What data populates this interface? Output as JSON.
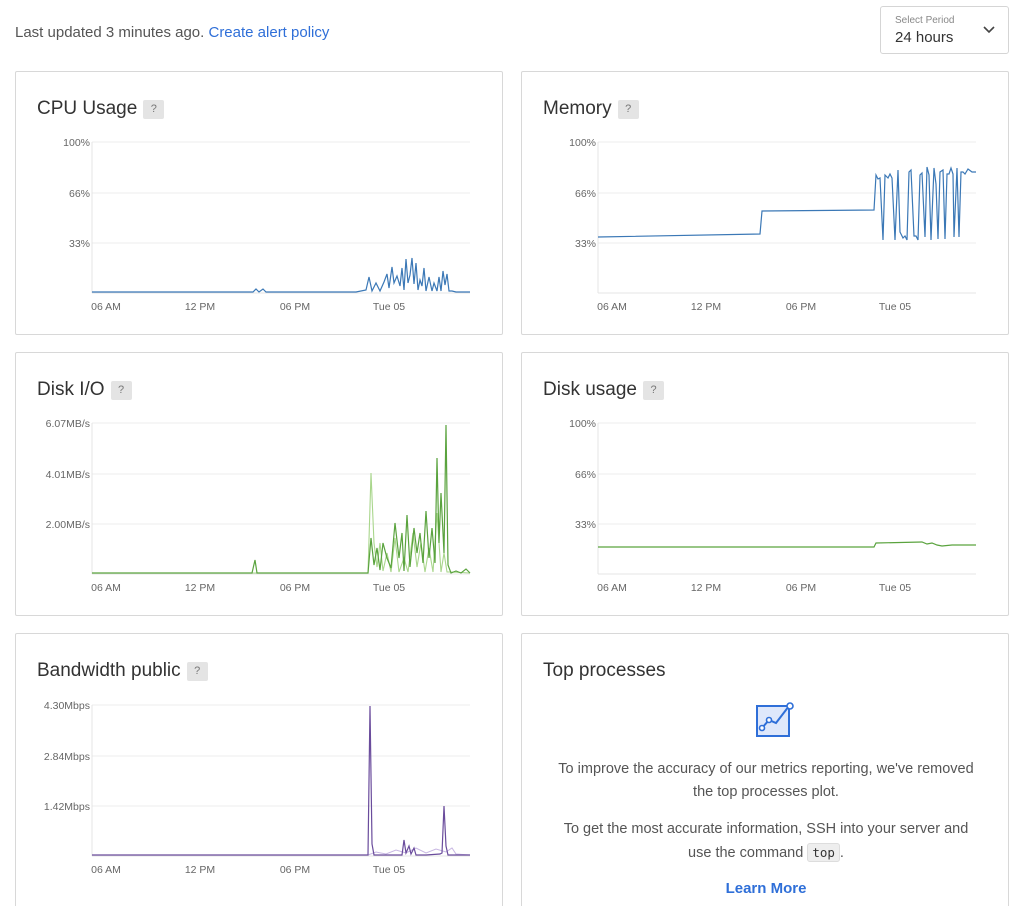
{
  "header": {
    "last_updated": "Last updated 3 minutes ago.",
    "alert_link": "Create alert policy",
    "period_caption": "Select Period",
    "period_value": "24 hours",
    "chevron_icon": "chevron-down-icon"
  },
  "charts": {
    "cpu": {
      "title": "CPU Usage",
      "help": "?",
      "yticks": [
        "100%",
        "66%",
        "33%"
      ],
      "xticks": [
        "06 AM",
        "12 PM",
        "06 PM",
        "Tue 05"
      ],
      "color": "#3b78b6"
    },
    "memory": {
      "title": "Memory",
      "help": "?",
      "yticks": [
        "100%",
        "66%",
        "33%"
      ],
      "xticks": [
        "06 AM",
        "12 PM",
        "06 PM",
        "Tue 05"
      ],
      "color": "#3b78b6"
    },
    "disk_io": {
      "title": "Disk I/O",
      "help": "?",
      "yticks": [
        "6.07MB/s",
        "4.01MB/s",
        "2.00MB/s"
      ],
      "xticks": [
        "06 AM",
        "12 PM",
        "06 PM",
        "Tue 05"
      ],
      "color": "#5aa33e",
      "color2": "#a9d68c"
    },
    "disk_usage": {
      "title": "Disk usage",
      "help": "?",
      "yticks": [
        "100%",
        "66%",
        "33%"
      ],
      "xticks": [
        "06 AM",
        "12 PM",
        "06 PM",
        "Tue 05"
      ],
      "color": "#5aa33e"
    },
    "bandwidth": {
      "title": "Bandwidth public",
      "help": "?",
      "yticks": [
        "4.30Mbps",
        "2.84Mbps",
        "1.42Mbps"
      ],
      "xticks": [
        "06 AM",
        "12 PM",
        "06 PM",
        "Tue 05"
      ],
      "color": "#6a4c9c",
      "color2": "#c7b6e2"
    }
  },
  "top_processes": {
    "title": "Top processes",
    "icon": "chart-line-icon",
    "para1": "To improve the accuracy of our metrics reporting, we've removed the top processes plot.",
    "para2_before": "To get the most accurate information, SSH into your server and use the command",
    "command": "top",
    "para2_after": ".",
    "learn_more": "Learn More"
  },
  "chart_data": [
    {
      "type": "line",
      "title": "CPU Usage",
      "ylim": [
        0,
        100
      ],
      "yticks": [
        "100%",
        "66%",
        "33%"
      ],
      "xticks": [
        "06 AM",
        "12 PM",
        "06 PM",
        "Tue 05"
      ],
      "x": [
        0,
        10,
        20,
        30,
        40,
        41,
        42,
        43,
        44,
        45,
        46,
        47,
        48,
        49,
        50,
        51,
        52,
        53,
        54,
        55,
        56,
        57,
        58,
        59,
        60,
        61,
        62,
        63,
        64,
        65,
        66,
        67,
        68,
        69,
        70,
        71,
        72,
        73,
        74,
        75,
        76,
        77,
        78,
        79,
        80,
        81,
        82,
        83,
        84,
        85,
        86,
        87,
        88,
        89,
        90,
        91,
        92,
        93,
        94,
        95,
        96,
        97,
        98,
        99,
        100
      ],
      "series": [
        {
          "values": [
            1,
            1,
            1,
            1,
            1,
            3,
            1,
            1,
            3,
            1,
            1,
            1,
            1,
            1,
            1,
            1,
            1,
            1,
            1,
            1,
            1,
            1,
            1,
            1,
            1,
            1,
            1,
            1,
            1,
            1,
            1,
            1,
            1,
            1,
            1,
            1,
            1,
            1,
            1,
            1,
            1,
            1,
            1,
            1,
            1,
            1,
            1,
            1,
            1,
            1,
            1,
            1,
            1,
            1,
            1,
            1,
            1,
            1,
            1,
            1,
            1,
            1,
            1,
            1,
            1
          ]
        }
      ]
    },
    {
      "type": "line",
      "title": "Memory",
      "ylim": [
        0,
        100
      ],
      "yticks": [
        "100%",
        "66%",
        "33%"
      ],
      "xticks": [
        "06 AM",
        "12 PM",
        "06 PM",
        "Tue 05"
      ],
      "series": [
        {
          "values": [
            37,
            39,
            54,
            55,
            79,
            35,
            81,
            36,
            80,
            80
          ]
        }
      ]
    },
    {
      "type": "line",
      "title": "Disk I/O",
      "ylim": [
        0,
        6.07
      ],
      "yticks": [
        "6.07MB/s",
        "4.01MB/s",
        "2.00MB/s"
      ],
      "xticks": [
        "06 AM",
        "12 PM",
        "06 PM",
        "Tue 05"
      ],
      "series": [
        {
          "values": [
            0,
            0.5,
            0,
            4.1,
            2.6,
            6.0,
            0.1
          ]
        },
        {
          "values": [
            0,
            0,
            4.1,
            2.0,
            3.5,
            0
          ]
        }
      ]
    },
    {
      "type": "line",
      "title": "Disk usage",
      "ylim": [
        0,
        100
      ],
      "yticks": [
        "100%",
        "66%",
        "33%"
      ],
      "xticks": [
        "06 AM",
        "12 PM",
        "06 PM",
        "Tue 05"
      ],
      "series": [
        {
          "values": [
            18,
            18,
            18,
            20,
            20,
            19,
            19
          ]
        }
      ]
    },
    {
      "type": "line",
      "title": "Bandwidth public",
      "ylim": [
        0,
        4.3
      ],
      "yticks": [
        "4.30Mbps",
        "2.84Mbps",
        "1.42Mbps"
      ],
      "xticks": [
        "06 AM",
        "12 PM",
        "06 PM",
        "Tue 05"
      ],
      "series": [
        {
          "values": [
            0,
            0,
            4.3,
            0.4,
            1.4,
            0
          ]
        },
        {
          "values": [
            0,
            0,
            0.2,
            0.2,
            0.1
          ]
        }
      ]
    }
  ]
}
